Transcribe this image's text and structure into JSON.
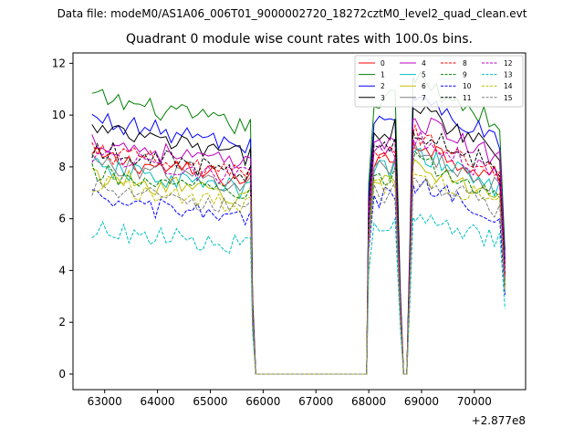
{
  "figure": {
    "suptitle": "Data file: modeM0/AS1A06_006T01_9000002720_18272cztM0_level2_quad_clean.evt"
  },
  "chart_data": {
    "type": "line",
    "title": "Quadrant 0 module wise count rates with 100.0s bins.",
    "xlabel": "",
    "ylabel": "",
    "x_offset_label": "+2.877e8",
    "xlim": [
      62400,
      70970
    ],
    "ylim": [
      -0.6,
      12.4
    ],
    "xticks": [
      63000,
      64000,
      65000,
      66000,
      67000,
      68000,
      69000,
      70000
    ],
    "xtick_labels": [
      "63000",
      "64000",
      "65000",
      "66000",
      "67000",
      "68000",
      "69000",
      "70000"
    ],
    "yticks": [
      0,
      2,
      4,
      6,
      8,
      10,
      12
    ],
    "ytick_labels": [
      "0",
      "2",
      "4",
      "6",
      "8",
      "10",
      "12"
    ],
    "legend_location": "top-right",
    "legend_columns": 4,
    "segments_x_ranges": [
      [
        62760,
        65760
      ],
      [
        68000,
        68560
      ],
      [
        68660,
        68800
      ],
      [
        68880,
        70560
      ]
    ],
    "gap_x_ranges": [
      [
        65860,
        67960
      ]
    ],
    "series": [
      {
        "name": "0",
        "color": "#ff0000",
        "linestyle": "solid",
        "seg1_level": 8.0,
        "seg2_level": 8.3
      },
      {
        "name": "1",
        "color": "#008000",
        "linestyle": "solid",
        "seg1_level": 10.2,
        "seg2_level": 10.6
      },
      {
        "name": "2",
        "color": "#0000ff",
        "linestyle": "solid",
        "seg1_level": 9.4,
        "seg2_level": 9.9
      },
      {
        "name": "3",
        "color": "#000000",
        "linestyle": "solid",
        "seg1_level": 9.0,
        "seg2_level": 9.5
      },
      {
        "name": "4",
        "color": "#bf00bf",
        "linestyle": "solid",
        "seg1_level": 8.6,
        "seg2_level": 9.1
      },
      {
        "name": "5",
        "color": "#00bfbf",
        "linestyle": "solid",
        "seg1_level": 7.6,
        "seg2_level": 7.9
      },
      {
        "name": "6",
        "color": "#bfbf00",
        "linestyle": "solid",
        "seg1_level": 7.3,
        "seg2_level": 7.5
      },
      {
        "name": "7",
        "color": "#808080",
        "linestyle": "solid",
        "seg1_level": 7.8,
        "seg2_level": 8.0
      },
      {
        "name": "8",
        "color": "#ff0000",
        "linestyle": "dashed",
        "seg1_level": 8.2,
        "seg2_level": 8.6
      },
      {
        "name": "9",
        "color": "#008000",
        "linestyle": "dashed",
        "seg1_level": 7.4,
        "seg2_level": 7.6
      },
      {
        "name": "10",
        "color": "#0000ff",
        "linestyle": "dashed",
        "seg1_level": 6.4,
        "seg2_level": 6.8
      },
      {
        "name": "11",
        "color": "#000000",
        "linestyle": "dashed",
        "seg1_level": 8.3,
        "seg2_level": 8.7
      },
      {
        "name": "12",
        "color": "#bf00bf",
        "linestyle": "dashed",
        "seg1_level": 8.1,
        "seg2_level": 8.4
      },
      {
        "name": "13",
        "color": "#00bfbf",
        "linestyle": "dashed",
        "seg1_level": 5.3,
        "seg2_level": 5.6
      },
      {
        "name": "14",
        "color": "#bfbf00",
        "linestyle": "dashed",
        "seg1_level": 7.0,
        "seg2_level": 7.2
      },
      {
        "name": "15",
        "color": "#808080",
        "linestyle": "dashed",
        "seg1_level": 6.8,
        "seg2_level": 7.0
      }
    ]
  }
}
